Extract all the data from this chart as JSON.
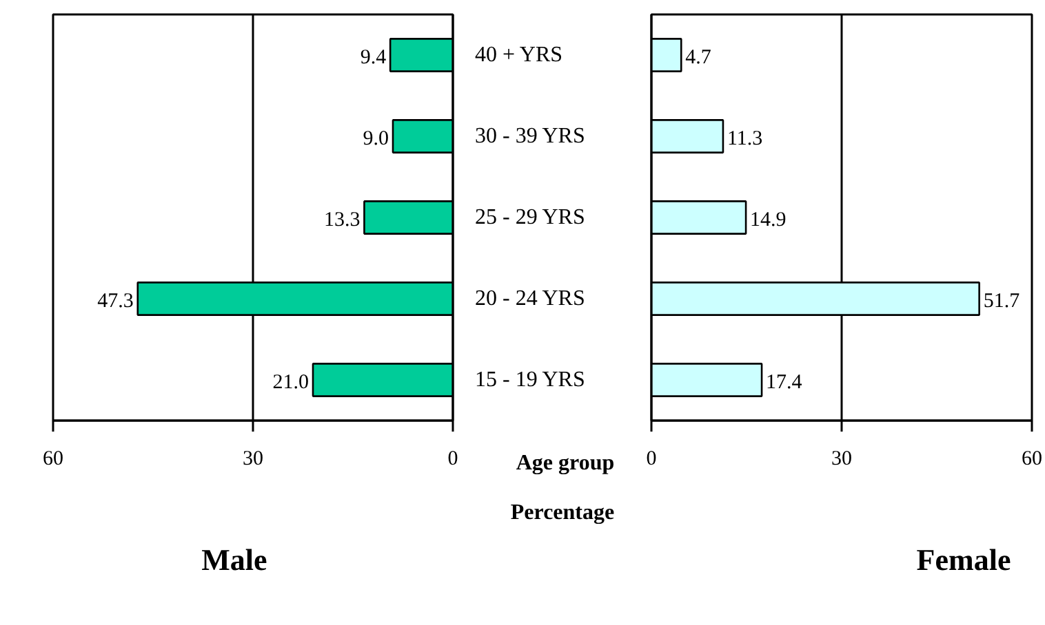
{
  "chart_data": [
    {
      "type": "bar",
      "orientation": "horizontal",
      "title": "Male",
      "xlabel": "Percentage",
      "ylabel": "Age group",
      "categories": [
        "40 + YRS",
        "30 -  39 YRS",
        "25 -  29 YRS",
        "20 -  24 YRS",
        "15 -  19 YRS"
      ],
      "values": [
        9.4,
        9.0,
        13.3,
        47.3,
        21.0
      ],
      "value_labels": [
        "9.4",
        "9.0",
        "13.3",
        "47.3",
        "21.0"
      ],
      "color": "#00cc99",
      "xlim": [
        60,
        0
      ],
      "xticks": [
        60,
        30,
        0
      ],
      "grid": "x"
    },
    {
      "type": "bar",
      "orientation": "horizontal",
      "title": "Female",
      "categories": [
        null,
        null,
        null,
        null,
        null
      ],
      "values": [
        4.7,
        11.3,
        14.9,
        51.7,
        17.4
      ],
      "value_labels": [
        "4.7",
        "11.3",
        "14.9",
        "51.7",
        "17.4"
      ],
      "color": "#ccffff",
      "xlim": [
        0,
        60
      ],
      "xticks": [
        0,
        30,
        60
      ],
      "grid": "x"
    }
  ]
}
